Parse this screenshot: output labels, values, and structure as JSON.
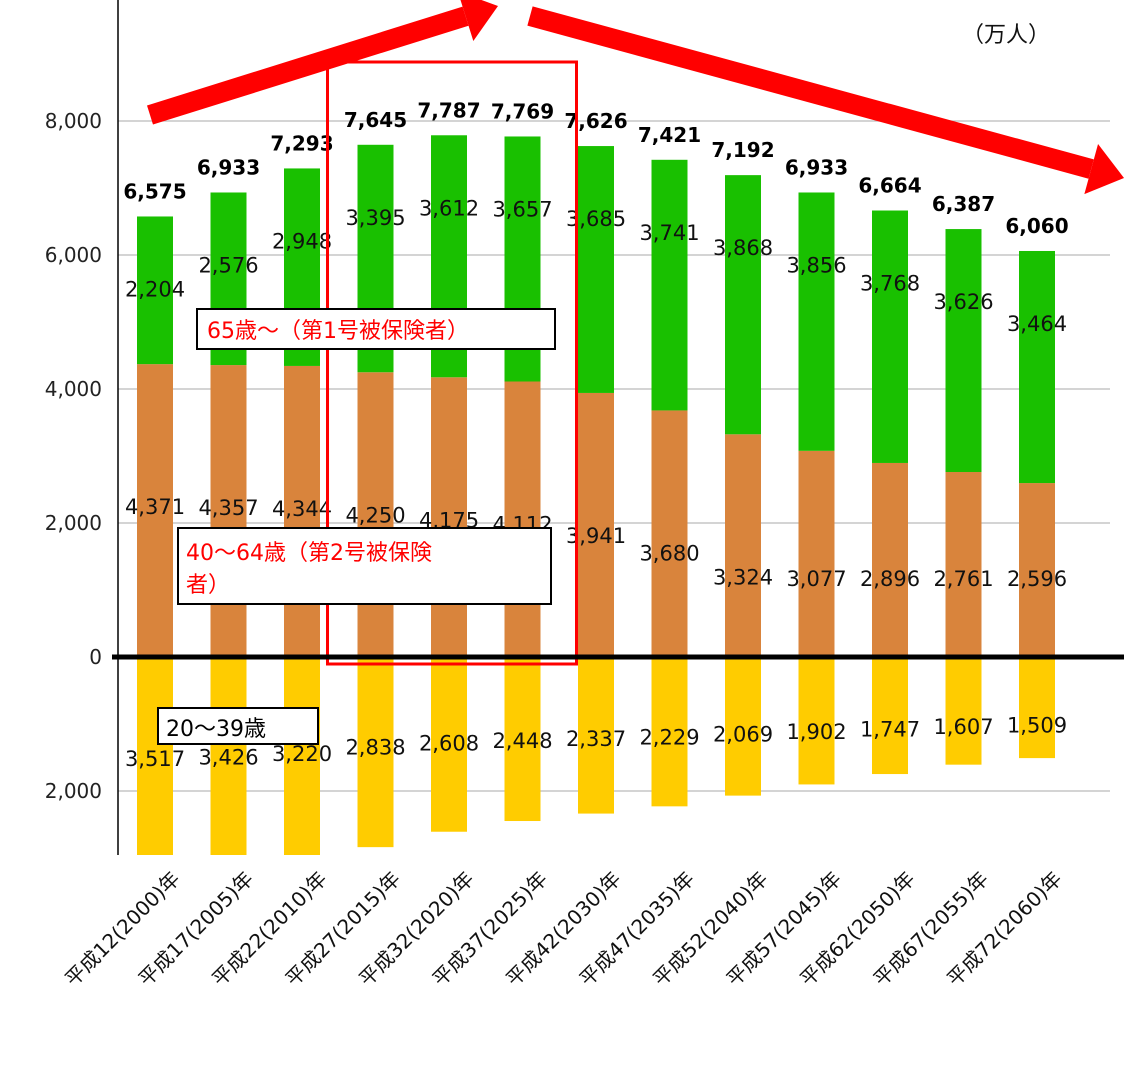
{
  "chart_data": {
    "type": "bar",
    "title": "",
    "unit_label": "（万人）",
    "xlabel": "",
    "ylabel": "",
    "yticks_upper": [
      "0",
      "2,000",
      "4,000",
      "6,000",
      "8,000"
    ],
    "yticks_lower": [
      "2,000"
    ],
    "categories": [
      "平成12(2000)年",
      "平成17(2005)年",
      "平成22(2010)年",
      "平成27(2015)年",
      "平成32(2020)年",
      "平成37(2025)年",
      "平成42(2030)年",
      "平成47(2035)年",
      "平成52(2040)年",
      "平成57(2045)年",
      "平成62(2050)年",
      "平成67(2055)年",
      "平成72(2060)年"
    ],
    "series": [
      {
        "name": "20〜39歳",
        "values": [
          3517,
          3426,
          3220,
          2838,
          2608,
          2448,
          2337,
          2229,
          2069,
          1902,
          1747,
          1607,
          1509
        ],
        "labels": [
          "3,517",
          "3,426",
          "3,220",
          "2,838",
          "2,608",
          "2,448",
          "2,337",
          "2,229",
          "2,069",
          "1,902",
          "1,747",
          "1,607",
          "1,509"
        ],
        "color": "#FFCC00"
      },
      {
        "name": "40〜64歳（第2号被保険者）",
        "values": [
          4371,
          4357,
          4344,
          4250,
          4175,
          4112,
          3941,
          3680,
          3324,
          3077,
          2896,
          2761,
          2596
        ],
        "labels": [
          "4,371",
          "4,357",
          "4,344",
          "4,250",
          "4,175",
          "4,112",
          "3,941",
          "3,680",
          "3,324",
          "3,077",
          "2,896",
          "2,761",
          "2,596"
        ],
        "color": "#D9843C"
      },
      {
        "name": "65歳〜（第1号被保険者）",
        "values": [
          2204,
          2576,
          2948,
          3395,
          3612,
          3657,
          3685,
          3741,
          3868,
          3856,
          3768,
          3626,
          3464
        ],
        "labels": [
          "2,204",
          "2,576",
          "2,948",
          "3,395",
          "3,612",
          "3,657",
          "3,685",
          "3,741",
          "3,868",
          "3,856",
          "3,768",
          "3,626",
          "3,464"
        ],
        "color": "#19C000"
      }
    ],
    "totals": [
      6575,
      6933,
      7293,
      7645,
      7787,
      7769,
      7626,
      7421,
      7192,
      6933,
      6664,
      6387,
      6060
    ],
    "total_labels": [
      "6,575",
      "6,933",
      "7,293",
      "7,645",
      "7,787",
      "7,769",
      "7,626",
      "7,421",
      "7,192",
      "6,933",
      "6,664",
      "6,387",
      "6,060"
    ],
    "legend_labels": {
      "group65": "65歳〜（第1号被保険者）",
      "group40_line1": "40〜64歳（第2号被保険",
      "group40_line2": "者）",
      "group20": "20〜39歳"
    },
    "highlight_categories": [
      3,
      5
    ],
    "ylim": [
      -3000,
      8000
    ],
    "grid": true,
    "colors": {
      "grid": "#bbbbbb",
      "axis": "#000000",
      "highlight": "#ff0000",
      "arrow": "#ff0000",
      "legend_red_text": "#ff0000"
    }
  }
}
